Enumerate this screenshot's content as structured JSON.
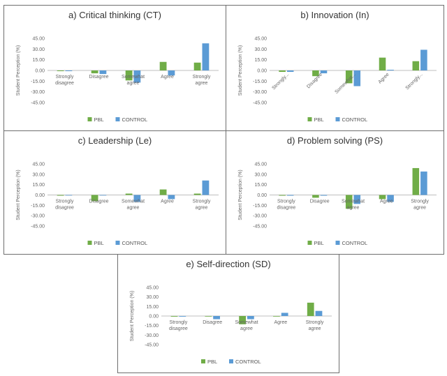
{
  "colors": {
    "pbl": "#70ad47",
    "control": "#5b9bd5",
    "axis": "#bfbfbf"
  },
  "chart_data": [
    {
      "type": "bar",
      "title": "a) Critical thinking (CT)",
      "ylabel": "Student Perception (%)",
      "yticks": [
        "45.00",
        "30.00",
        "15.00",
        "0.00",
        "-15.00",
        "-30.00",
        "-45.00"
      ],
      "ylim": [
        -45,
        45
      ],
      "categories": [
        [
          "Strongly",
          "disagree"
        ],
        [
          "Disagree"
        ],
        [
          "Somewhat",
          "agree"
        ],
        [
          "Agree"
        ],
        [
          "Strongly",
          "agree"
        ]
      ],
      "rotated_labels": false,
      "series": [
        {
          "name": "PBL",
          "values": [
            -1,
            -4,
            -14,
            12,
            11
          ]
        },
        {
          "name": "CONTROL",
          "values": [
            -1,
            -5,
            -17,
            -7,
            38
          ]
        }
      ]
    },
    {
      "type": "bar",
      "title": "b) Innovation (In)",
      "ylabel": "Student Perception (%)",
      "yticks": [
        "45.00",
        "30.00",
        "15.00",
        "0.00",
        "-15.00",
        "-30.00",
        "-45.00"
      ],
      "ylim": [
        -45,
        45
      ],
      "categories": [
        [
          "Strongly..."
        ],
        [
          "Disagree"
        ],
        [
          "Somewhat..."
        ],
        [
          "Agree"
        ],
        [
          "Strongly..."
        ]
      ],
      "rotated_labels": true,
      "series": [
        {
          "name": "PBL",
          "values": [
            -2,
            -8,
            -18,
            18,
            13
          ]
        },
        {
          "name": "CONTROL",
          "values": [
            -2,
            -4,
            -22,
            1,
            29
          ]
        }
      ]
    },
    {
      "type": "bar",
      "title": "c) Leadership (Le)",
      "ylabel": "Student Perception (%)",
      "yticks": [
        "45.00",
        "30.00",
        "15.00",
        "0.00",
        "-15.00",
        "-30.00",
        "-45.00"
      ],
      "ylim": [
        -45,
        45
      ],
      "categories": [
        [
          "Strongly",
          "disagree"
        ],
        [
          "Disagree"
        ],
        [
          "Somewhat",
          "agree"
        ],
        [
          "Agree"
        ],
        [
          "Strongly",
          "agree"
        ]
      ],
      "rotated_labels": false,
      "series": [
        {
          "name": "PBL",
          "values": [
            -1,
            -9,
            2,
            8,
            2
          ]
        },
        {
          "name": "CONTROL",
          "values": [
            0,
            0,
            -10,
            -6,
            21
          ]
        }
      ]
    },
    {
      "type": "bar",
      "title": "d) Problem solving (PS)",
      "ylabel": "Student Perception (%)",
      "yticks": [
        "45.00",
        "30.00",
        "15.00",
        "0.00",
        "-15.00",
        "-30.00",
        "-45.00"
      ],
      "ylim": [
        -45,
        45
      ],
      "categories": [
        [
          "Strongly",
          "disagree"
        ],
        [
          "Disagree"
        ],
        [
          "Somewhat",
          "agree"
        ],
        [
          "Agree"
        ],
        [
          "Strongly",
          "agree"
        ]
      ],
      "rotated_labels": false,
      "series": [
        {
          "name": "PBL",
          "values": [
            -1,
            -4,
            -20,
            -6,
            39
          ]
        },
        {
          "name": "CONTROL",
          "values": [
            -1,
            -1,
            -13,
            -10,
            34
          ]
        }
      ]
    },
    {
      "type": "bar",
      "title": "e) Self-direction (SD)",
      "ylabel": "Student Perception (%)",
      "yticks": [
        "45.00",
        "30.00",
        "15.00",
        "0.00",
        "-15.00",
        "-30.00",
        "-45.00"
      ],
      "ylim": [
        -45,
        45
      ],
      "categories": [
        [
          "Strongly",
          "disagree"
        ],
        [
          "Disagree"
        ],
        [
          "Somewhat",
          "agree"
        ],
        [
          "Agree"
        ],
        [
          "Strongly",
          "agree"
        ]
      ],
      "rotated_labels": false,
      "series": [
        {
          "name": "PBL",
          "values": [
            -1,
            0,
            -13,
            0,
            21
          ]
        },
        {
          "name": "CONTROL",
          "values": [
            -1,
            -5,
            -5,
            5,
            8
          ]
        }
      ]
    }
  ]
}
